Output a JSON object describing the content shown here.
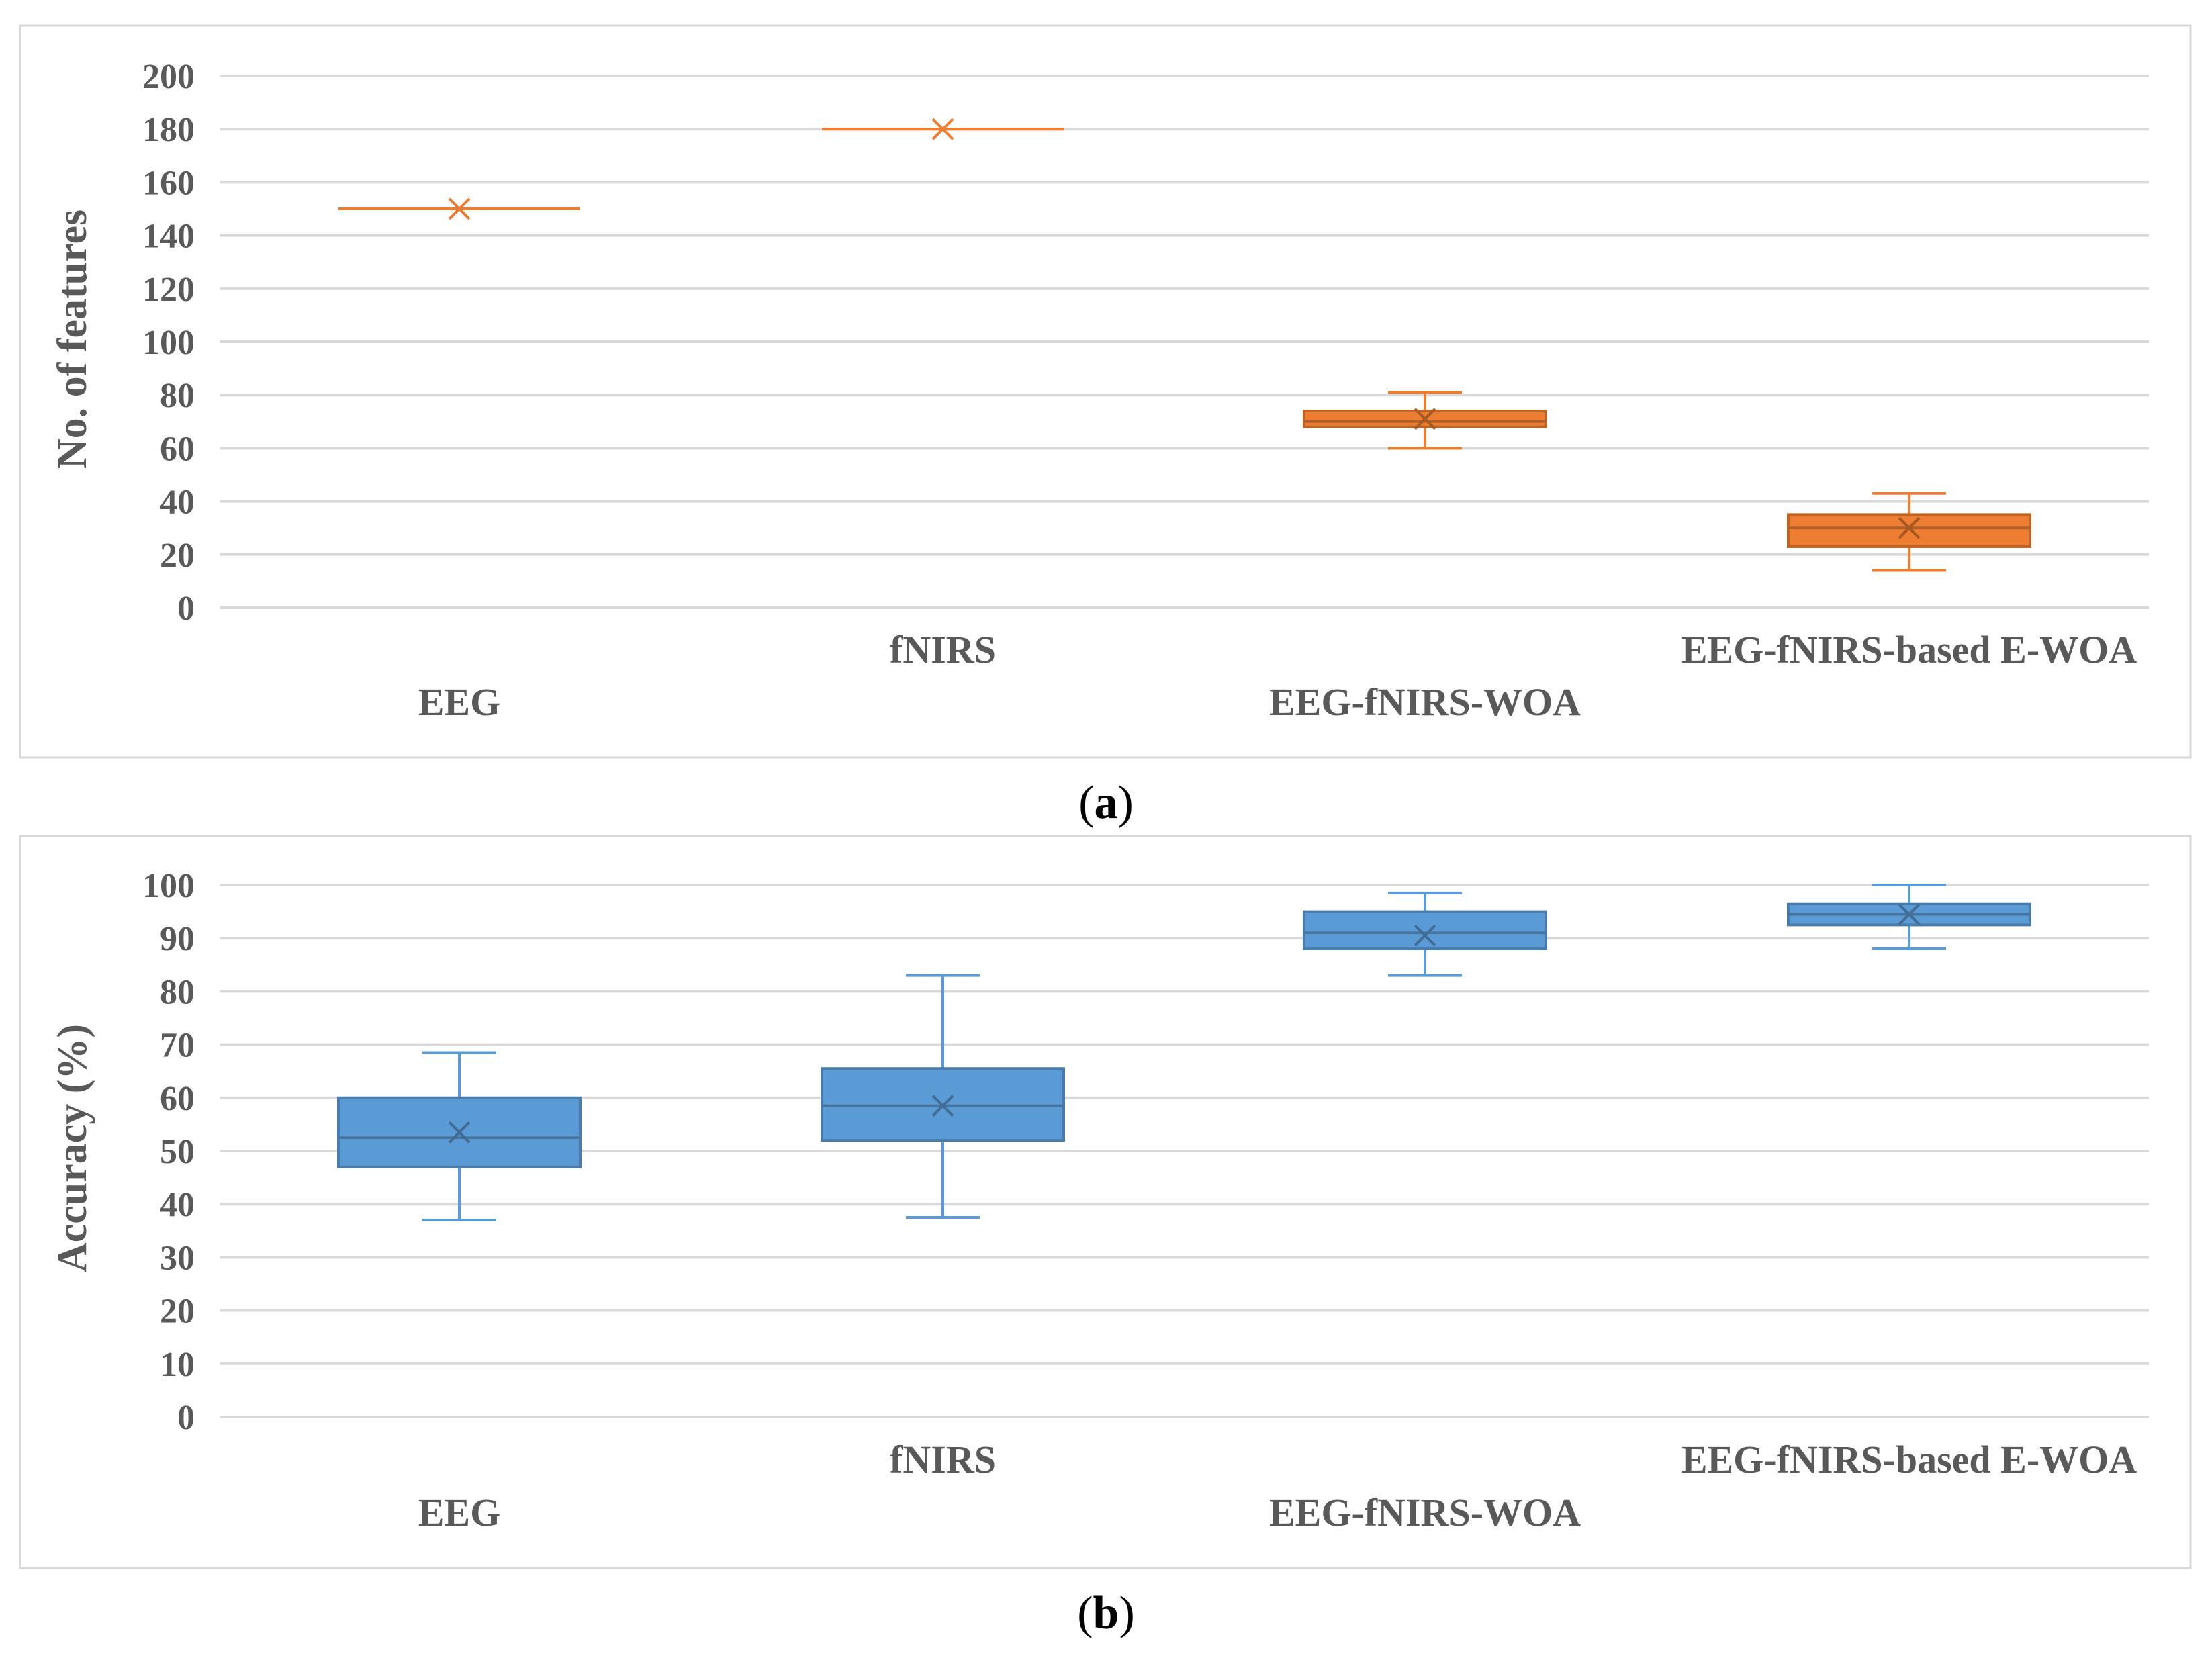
{
  "chart_data": [
    {
      "type": "box",
      "panel_caption_letter": "a",
      "ylabel": "No. of features",
      "ylim": [
        0,
        200
      ],
      "yticks": [
        0,
        20,
        40,
        60,
        80,
        100,
        120,
        140,
        160,
        180,
        200
      ],
      "grid": true,
      "color": "#ED7D31",
      "series": [
        {
          "name": "EEG",
          "min": 150,
          "q1": 150,
          "median": 150,
          "q3": 150,
          "max": 150,
          "mean": 150
        },
        {
          "name": "fNIRS",
          "min": 180,
          "q1": 180,
          "median": 180,
          "q3": 180,
          "max": 180,
          "mean": 180
        },
        {
          "name": "EEG-fNIRS-WOA",
          "min": 60,
          "q1": 68,
          "median": 70,
          "q3": 74,
          "max": 81,
          "mean": 71
        },
        {
          "name": "EEG-fNIRS-based E-WOA",
          "min": 14,
          "q1": 23,
          "median": 30,
          "q3": 35,
          "max": 43,
          "mean": 30
        }
      ]
    },
    {
      "type": "box",
      "panel_caption_letter": "b",
      "ylabel": "Accuracy (%)",
      "ylim": [
        0,
        100
      ],
      "yticks": [
        0,
        10,
        20,
        30,
        40,
        50,
        60,
        70,
        80,
        90,
        100
      ],
      "grid": true,
      "color": "#5B9BD5",
      "series": [
        {
          "name": "EEG",
          "min": 37,
          "q1": 47,
          "median": 52.5,
          "q3": 60,
          "max": 68.5,
          "mean": 53.5
        },
        {
          "name": "fNIRS",
          "min": 37.5,
          "q1": 52,
          "median": 58.5,
          "q3": 65.5,
          "max": 83,
          "mean": 58.5
        },
        {
          "name": "EEG-fNIRS-WOA",
          "min": 83,
          "q1": 88,
          "median": 91,
          "q3": 95,
          "max": 98.5,
          "mean": 90.5
        },
        {
          "name": "EEG-fNIRS-based E-WOA",
          "min": 88,
          "q1": 92.5,
          "median": 94.5,
          "q3": 96.5,
          "max": 100,
          "mean": 94.5
        }
      ]
    }
  ],
  "captions": {
    "open": "(",
    "close": ")"
  }
}
